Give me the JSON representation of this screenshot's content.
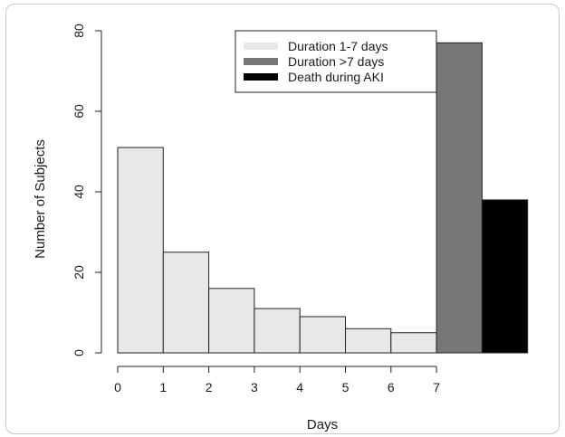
{
  "chart_data": {
    "type": "bar",
    "title": "",
    "xlabel": "Days",
    "ylabel": "Number of Subjects",
    "xlim": [
      0,
      9.5
    ],
    "ylim": [
      0,
      80
    ],
    "x_ticks": [
      "0",
      "1",
      "2",
      "3",
      "4",
      "5",
      "6",
      "7"
    ],
    "y_ticks": [
      "0",
      "20",
      "40",
      "60",
      "80"
    ],
    "grid": false,
    "legend_position": "top-center",
    "series": [
      {
        "name": "Duration 1-7 days",
        "color": "#e8e8e8",
        "bins": [
          [
            0,
            1
          ],
          [
            1,
            2
          ],
          [
            2,
            3
          ],
          [
            3,
            4
          ],
          [
            4,
            5
          ],
          [
            5,
            6
          ],
          [
            6,
            7
          ]
        ],
        "values": [
          51,
          25,
          16,
          11,
          9,
          6,
          5
        ]
      },
      {
        "name": "Duration >7 days",
        "color": "#777777",
        "bins": [
          [
            7,
            8
          ]
        ],
        "values": [
          77
        ]
      },
      {
        "name": "Death during AKI",
        "color": "#000000",
        "bins": [
          [
            8,
            9
          ]
        ],
        "values": [
          38
        ]
      }
    ]
  }
}
